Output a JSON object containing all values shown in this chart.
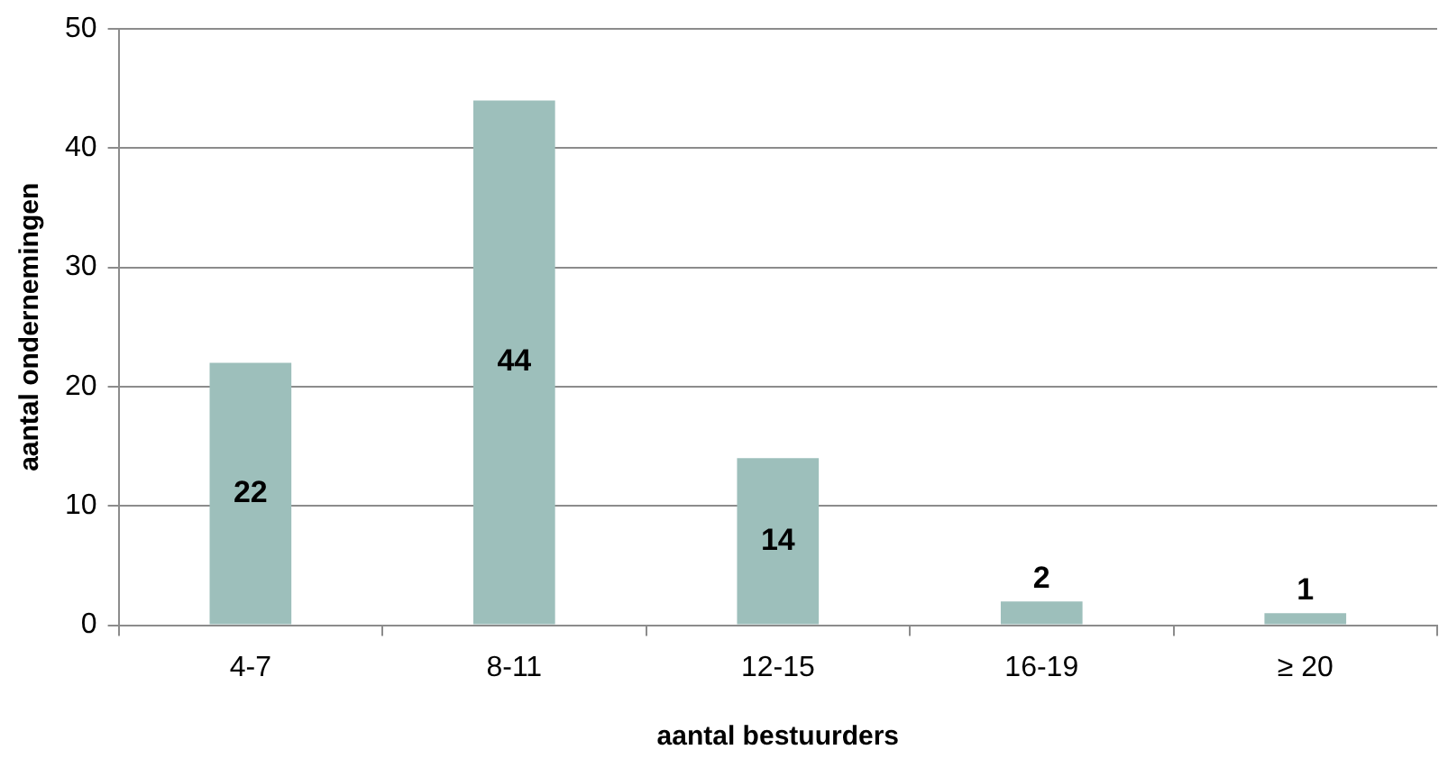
{
  "chart_data": {
    "type": "bar",
    "xlabel": "aantal bestuurders",
    "ylabel": "aantal ondernemingen",
    "categories": [
      "4-7",
      "8-11",
      "12-15",
      "16-19",
      "≥ 20"
    ],
    "values": [
      22,
      44,
      14,
      2,
      1
    ],
    "color": "#9dbfbb",
    "ylim": [
      0,
      50
    ],
    "yticks": [
      0,
      10,
      20,
      30,
      40,
      50
    ],
    "grid": "y",
    "legend": false,
    "data_labels": true
  }
}
